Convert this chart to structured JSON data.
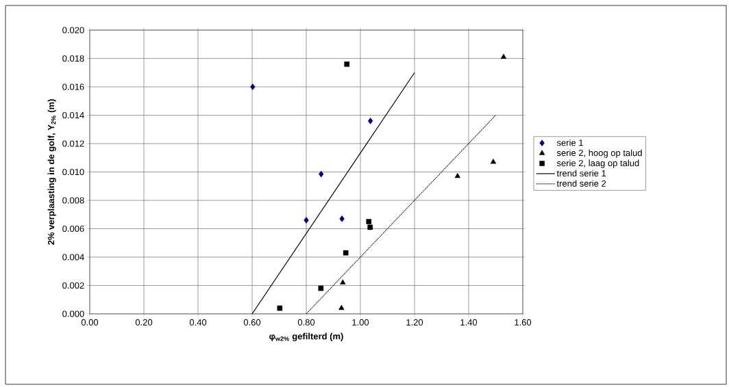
{
  "chart_data": {
    "type": "scatter",
    "xlabel": "φ$_{w2%}$ gefilterd (m)",
    "ylabel": "2% verplaasting in de golf, Y$_{2%}$ (m)",
    "xlim": [
      0,
      1.6
    ],
    "ylim": [
      0,
      0.02
    ],
    "xticks": [
      {
        "value": 0,
        "label": "0.00"
      },
      {
        "value": 0.2,
        "label": "0.20"
      },
      {
        "value": 0.4,
        "label": "0.40"
      },
      {
        "value": 0.6,
        "label": "0.60"
      },
      {
        "value": 0.8,
        "label": "0.80"
      },
      {
        "value": 1.0,
        "label": "1.00"
      },
      {
        "value": 1.2,
        "label": "1.20"
      },
      {
        "value": 1.4,
        "label": "1.40"
      },
      {
        "value": 1.6,
        "label": "1.60"
      }
    ],
    "yticks": [
      {
        "value": 0,
        "label": "0.000"
      },
      {
        "value": 0.002,
        "label": "0.002"
      },
      {
        "value": 0.004,
        "label": "0.004"
      },
      {
        "value": 0.006,
        "label": "0.006"
      },
      {
        "value": 0.008,
        "label": "0.008"
      },
      {
        "value": 0.01,
        "label": "0.010"
      },
      {
        "value": 0.012,
        "label": "0.012"
      },
      {
        "value": 0.014,
        "label": "0.014"
      },
      {
        "value": 0.016,
        "label": "0.016"
      },
      {
        "value": 0.018,
        "label": "0.018"
      },
      {
        "value": 0.02,
        "label": "0.020"
      }
    ],
    "grid": true,
    "legend": "right",
    "series": [
      {
        "name": "serie 1",
        "marker": "diamond",
        "color": "#000080",
        "x": [
          0.602,
          1.037,
          0.855,
          0.8,
          0.932
        ],
        "values": [
          0.016,
          0.0136,
          0.00985,
          0.0066,
          0.0067
        ]
      },
      {
        "name": "serie 2, hoog op talud",
        "marker": "triangle",
        "color": "#000000",
        "x": [
          1.529,
          1.491,
          1.359,
          0.935,
          0.93
        ],
        "values": [
          0.0181,
          0.0107,
          0.0097,
          0.0022,
          0.0004
        ]
      },
      {
        "name": "serie 2, laag op talud",
        "marker": "square",
        "color": "#000000",
        "x": [
          0.95,
          1.031,
          1.036,
          0.946,
          0.854,
          0.702
        ],
        "values": [
          0.0176,
          0.0065,
          0.0061,
          0.0043,
          0.0018,
          0.0004
        ]
      },
      {
        "name": "trend serie 1",
        "type": "line",
        "marker": "none",
        "line_style": "solid",
        "color": "#000000",
        "x": [
          0.6,
          1.2
        ],
        "values": [
          0,
          0.017
        ]
      },
      {
        "name": "trend serie 2",
        "type": "line",
        "marker": "none",
        "line_style": "dotted",
        "color": "#000000",
        "x": [
          0.8,
          1.5
        ],
        "values": [
          0,
          0.014
        ]
      }
    ]
  }
}
